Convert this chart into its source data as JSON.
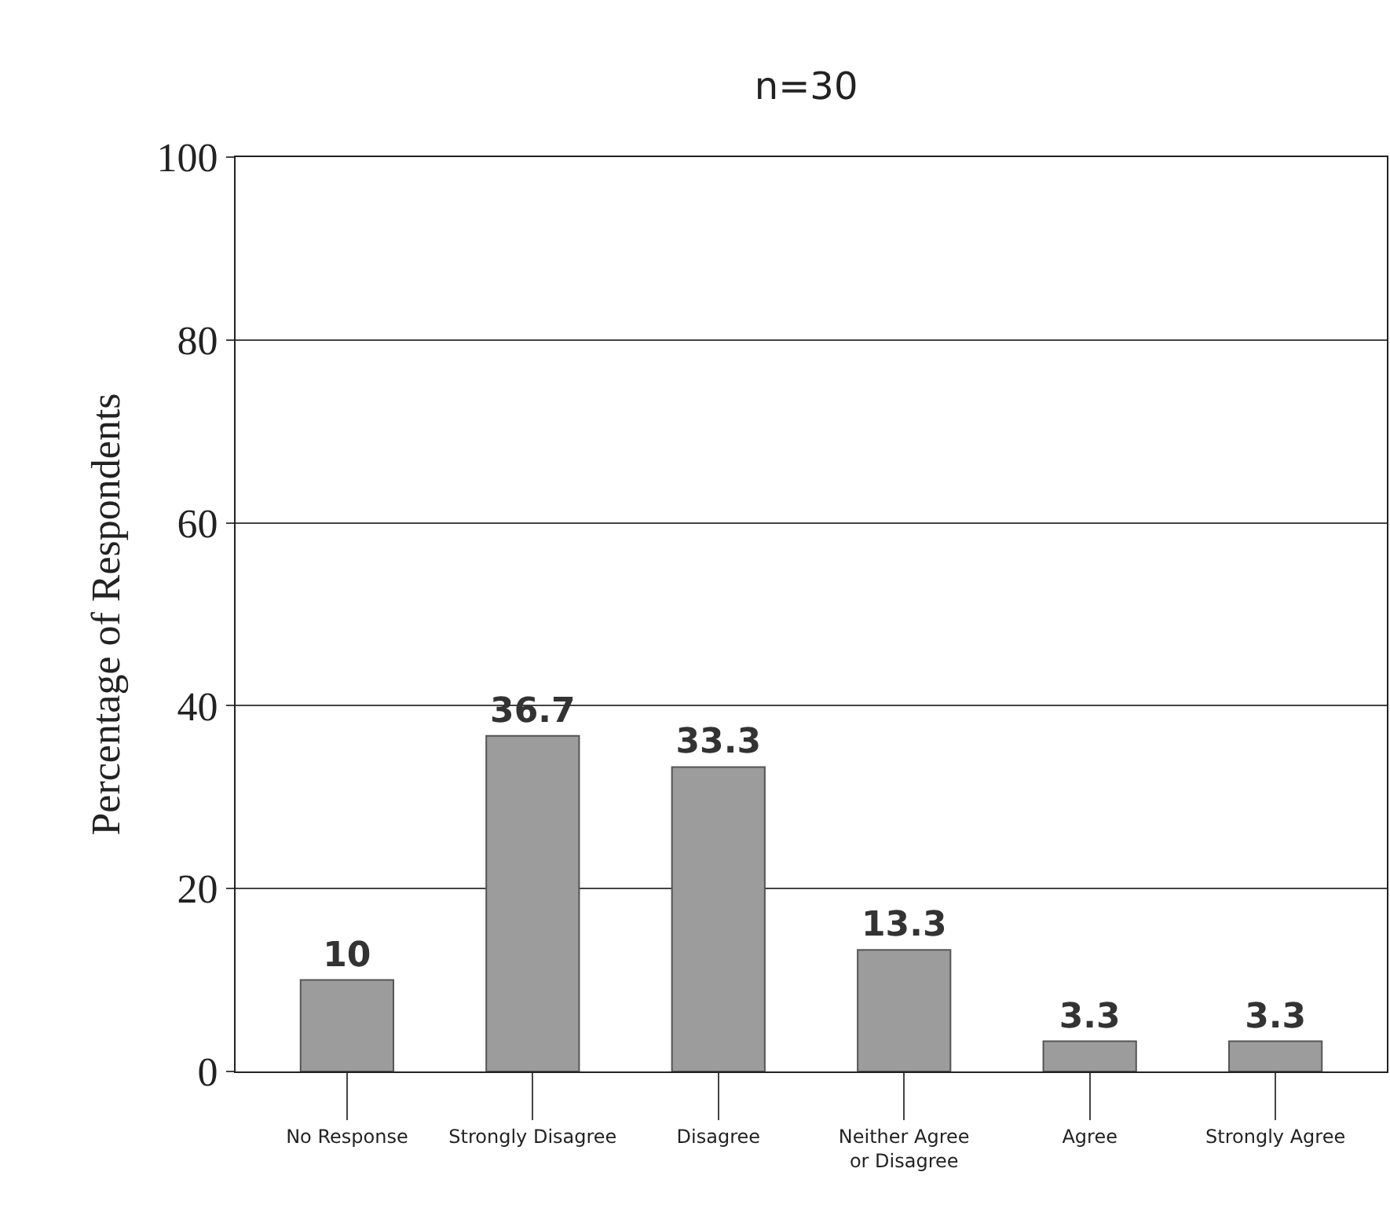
{
  "chart_data": {
    "type": "bar",
    "title": "n=30",
    "ylabel": "Percentage of Respondents",
    "categories": [
      "No Response",
      "Strongly Disagree",
      "Disagree",
      "Neither Agree or Disagree",
      "Agree",
      "Strongly Agree"
    ],
    "values": [
      10,
      36.7,
      33.3,
      13.3,
      3.3,
      3.3
    ],
    "color": "#9c9c9c",
    "ylim": [
      0,
      100
    ],
    "yticks": [
      0,
      20,
      40,
      60,
      80,
      100
    ],
    "grid": "y",
    "data_labels": true
  }
}
